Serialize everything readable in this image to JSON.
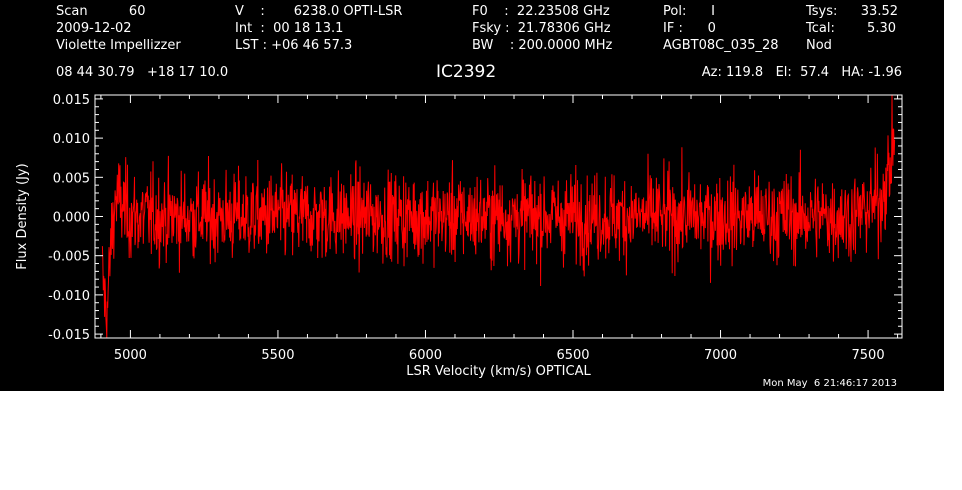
{
  "header": {
    "col1": [
      "Scan          60",
      "2009-12-02",
      "Violette Impellizzer"
    ],
    "col2": [
      "V    :       6238.0 OPTI-LSR",
      "Int  :  00 18 13.1",
      "LST : +06 46 57.3"
    ],
    "col3": [
      "F0    :  22.23508 GHz",
      "Fsky :  21.78306 GHz",
      "BW    : 200.0000 MHz"
    ],
    "col4": [
      "Pol:      I",
      "IF :      0",
      "AGBT08C_035_28"
    ],
    "col5_labels": [
      "Tsys:",
      "Tcal:",
      "Nod"
    ],
    "col5_values": [
      "33.52",
      "5.30",
      ""
    ],
    "coords": "08 44 30.79   +18 17 10.0",
    "source": "IC2392",
    "pointing": "Az: 119.8   El:  57.4   HA: -1.96",
    "timestamp": "Mon May  6 21:46:17 2013"
  },
  "chart_data": {
    "type": "line",
    "xlabel": "LSR Velocity (km/s) OPTICAL",
    "ylabel": "Flux Density (Jy)",
    "xlim": [
      4880,
      7615
    ],
    "ylim": [
      -0.0155,
      0.0155
    ],
    "xticks": [
      5000,
      5500,
      6000,
      6500,
      7000,
      7500
    ],
    "xtick_labels": [
      "5000",
      "5500",
      "6000",
      "6500",
      "7000",
      "7500"
    ],
    "yticks": [
      -0.015,
      -0.01,
      -0.005,
      0.0,
      0.005,
      0.01,
      0.015
    ],
    "ytick_labels": [
      "-0.015",
      "-0.010",
      "-0.005",
      "0.000",
      "0.005",
      "0.010",
      "0.015"
    ],
    "series": [
      {
        "color": "#ff0000",
        "x_start": 4905,
        "x_end": 7590,
        "n_points": 1800,
        "noise_rms": 0.0028,
        "features": [
          {
            "x": 4905,
            "y": -0.0075
          },
          {
            "x": 4920,
            "y": -0.013
          },
          {
            "x": 4935,
            "y": -0.003
          },
          {
            "x": 4950,
            "y": 0.0025
          },
          {
            "x": 5000,
            "y": 0.0
          },
          {
            "x": 7450,
            "y": 0.0
          },
          {
            "x": 7540,
            "y": 0.002
          },
          {
            "x": 7575,
            "y": 0.006
          },
          {
            "x": 7590,
            "y": 0.011
          }
        ]
      }
    ]
  }
}
